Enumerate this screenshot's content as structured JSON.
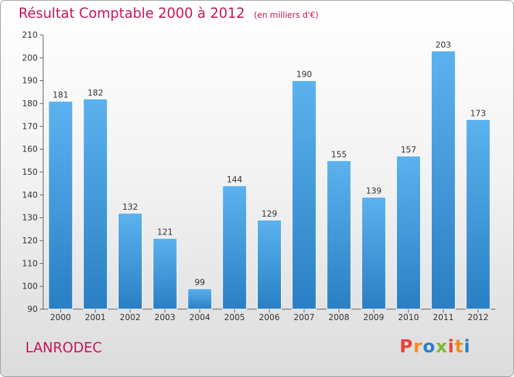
{
  "header": {
    "title": "Résultat Comptable 2000 à 2012",
    "unit": "(en milliers d'€)"
  },
  "footer": {
    "commune": "LANRODEC",
    "logo": "Proxiti"
  },
  "colors": {
    "title": "#c8155a",
    "bar_top": "#5cb2ee",
    "bar_bottom": "#2a7fc4",
    "logo_letters": [
      "#e8423a",
      "#f28c1f",
      "#2a7fc4",
      "#7dbb2f",
      "#e8423a",
      "#f28c1f",
      "#2a7fc4"
    ]
  },
  "chart_data": {
    "type": "bar",
    "categories": [
      "2000",
      "2001",
      "2002",
      "2003",
      "2004",
      "2005",
      "2006",
      "2007",
      "2008",
      "2009",
      "2010",
      "2011",
      "2012"
    ],
    "values": [
      181,
      182,
      132,
      121,
      99,
      144,
      129,
      190,
      155,
      139,
      157,
      203,
      173
    ],
    "ylim": [
      90,
      210
    ],
    "yticks": [
      90,
      100,
      110,
      120,
      130,
      140,
      150,
      160,
      170,
      180,
      190,
      200,
      210
    ],
    "grid": false,
    "data_labels": true
  }
}
